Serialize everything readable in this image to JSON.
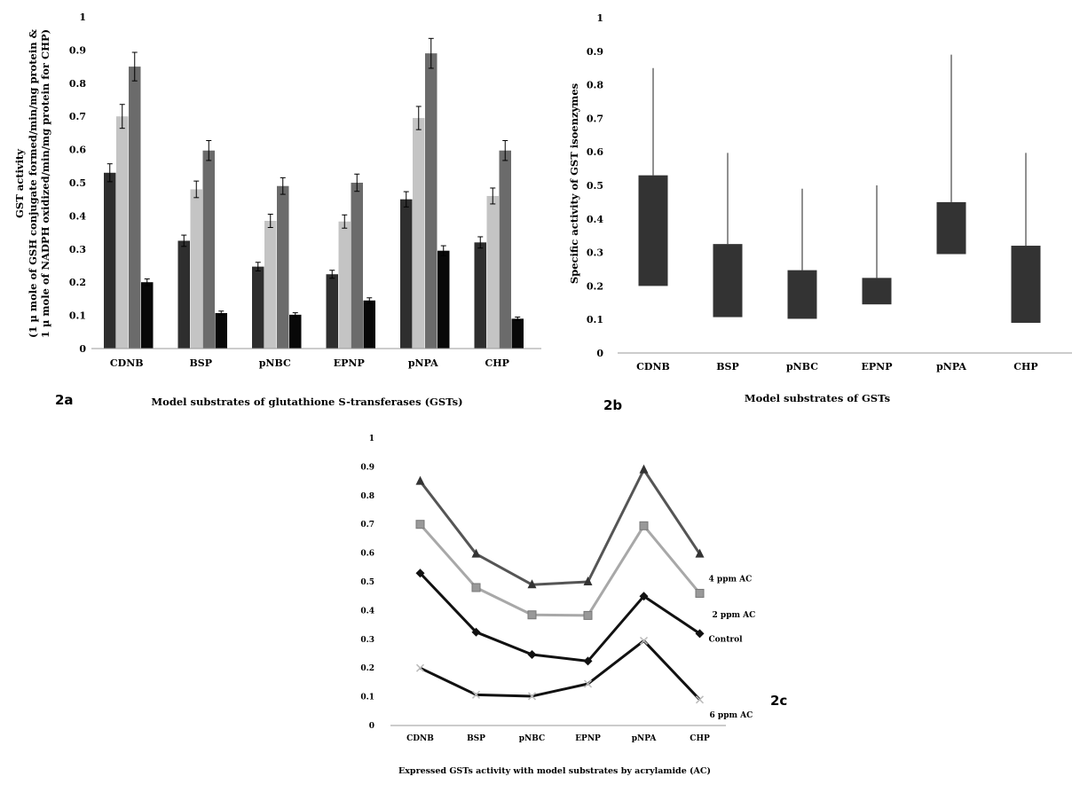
{
  "chart_data": [
    {
      "id": "2a",
      "type": "bar",
      "panel_label": "2a",
      "categories": [
        "CDNB",
        "BSP",
        "pNBC",
        "EPNP",
        "pNPA",
        "CHP"
      ],
      "series": [
        {
          "name": "Control",
          "color": "#2e2e2e",
          "values": [
            0.53,
            0.325,
            0.247,
            0.224,
            0.45,
            0.32
          ],
          "errors": [
            0.027,
            0.017,
            0.013,
            0.012,
            0.023,
            0.017
          ]
        },
        {
          "name": "2 ppm AC",
          "color": "#c4c4c4",
          "values": [
            0.7,
            0.48,
            0.385,
            0.383,
            0.695,
            0.46
          ],
          "errors": [
            0.036,
            0.025,
            0.02,
            0.02,
            0.035,
            0.024
          ]
        },
        {
          "name": "4 ppm AC",
          "color": "#6b6b6b",
          "values": [
            0.85,
            0.597,
            0.49,
            0.5,
            0.89,
            0.597
          ],
          "errors": [
            0.043,
            0.03,
            0.025,
            0.026,
            0.045,
            0.03
          ]
        },
        {
          "name": "6 ppm AC",
          "color": "#080808",
          "values": [
            0.2,
            0.107,
            0.102,
            0.145,
            0.295,
            0.09
          ],
          "errors": [
            0.01,
            0.006,
            0.006,
            0.008,
            0.015,
            0.005
          ]
        }
      ],
      "ylim": [
        0,
        1
      ],
      "yticks": [
        "0",
        "0.1",
        "0.2",
        "0.3",
        "0.4",
        "0.5",
        "0.6",
        "0.7",
        "0.8",
        "0.9",
        "1"
      ],
      "ylabel_lines": [
        "GST activity",
        "(1 µ mole of GSH conjugate formed/min/mg protein &",
        "1 µ mole of NADPH oxidized/min/mg protein for CHP)"
      ],
      "xlabel": "Model substrates of glutathione S-transferases (GSTs)"
    },
    {
      "id": "2b",
      "type": "range_bar",
      "panel_label": "2b",
      "categories": [
        "CDNB",
        "BSP",
        "pNBC",
        "EPNP",
        "pNPA",
        "CHP"
      ],
      "box_low": [
        0.2,
        0.107,
        0.102,
        0.145,
        0.295,
        0.09
      ],
      "box_high": [
        0.53,
        0.325,
        0.247,
        0.224,
        0.45,
        0.32
      ],
      "whisker_high": [
        0.85,
        0.597,
        0.49,
        0.5,
        0.89,
        0.597
      ],
      "box_color": "#333333",
      "ylim": [
        0,
        1
      ],
      "yticks": [
        "0",
        "0.1",
        "0.2",
        "0.3",
        "0.4",
        "0.5",
        "0.6",
        "0.7",
        "0.8",
        "0.9",
        "1"
      ],
      "ylabel": "Specific activity of GST isoenzymes",
      "xlabel": "Model substrates of GSTs"
    },
    {
      "id": "2c",
      "type": "line",
      "panel_label": "2c",
      "categories": [
        "CDNB",
        "BSP",
        "pNBC",
        "EPNP",
        "pNPA",
        "CHP"
      ],
      "series": [
        {
          "name": "4 ppm AC",
          "color": "#555555",
          "marker": "triangle",
          "values": [
            0.85,
            0.597,
            0.49,
            0.5,
            0.89,
            0.597
          ]
        },
        {
          "name": "2 ppm AC",
          "color": "#a8a8a8",
          "marker": "square",
          "values": [
            0.7,
            0.48,
            0.385,
            0.383,
            0.695,
            0.46
          ]
        },
        {
          "name": "Control",
          "color": "#111111",
          "marker": "diamond",
          "values": [
            0.53,
            0.325,
            0.247,
            0.224,
            0.45,
            0.32
          ]
        },
        {
          "name": "6 ppm AC",
          "color": "#111111",
          "marker": "x",
          "values": [
            0.2,
            0.107,
            0.102,
            0.145,
            0.295,
            0.09
          ]
        }
      ],
      "ylim": [
        0,
        1
      ],
      "yticks": [
        "0",
        "0.1",
        "0.2",
        "0.3",
        "0.4",
        "0.5",
        "0.6",
        "0.7",
        "0.8",
        "0.9",
        "1"
      ],
      "xlabel": "Expressed GSTs activity with model substrates by acrylamide (AC)"
    }
  ]
}
